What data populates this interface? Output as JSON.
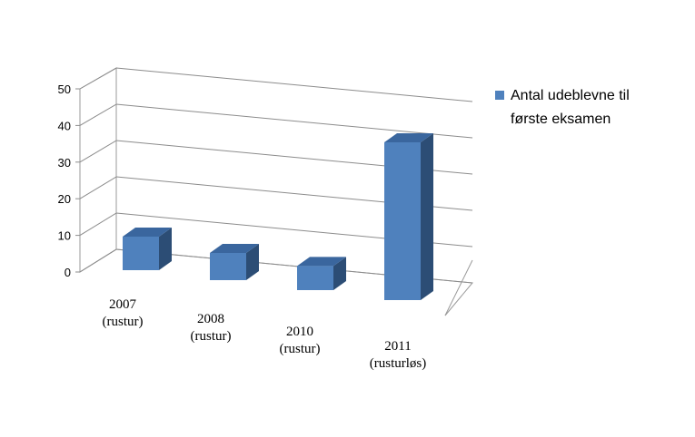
{
  "chart_data": {
    "type": "bar",
    "categories": [
      [
        "2007",
        "(rustur)"
      ],
      [
        "2008",
        "(rustur)"
      ],
      [
        "2010",
        "(rustur)"
      ],
      [
        "2011",
        "(rusturløs)"
      ]
    ],
    "series": [
      {
        "name": "Antal udeblevne til første eksamen",
        "values": [
          10,
          8,
          7,
          45
        ],
        "color": "#4f81bd"
      }
    ],
    "legend_lines": [
      "Antal udeblevne til",
      "første eksamen"
    ],
    "y_ticks": [
      0,
      10,
      20,
      30,
      40,
      50
    ],
    "ylim": [
      0,
      50
    ],
    "grid": true,
    "legend_position": "right",
    "style": "3d-column"
  }
}
